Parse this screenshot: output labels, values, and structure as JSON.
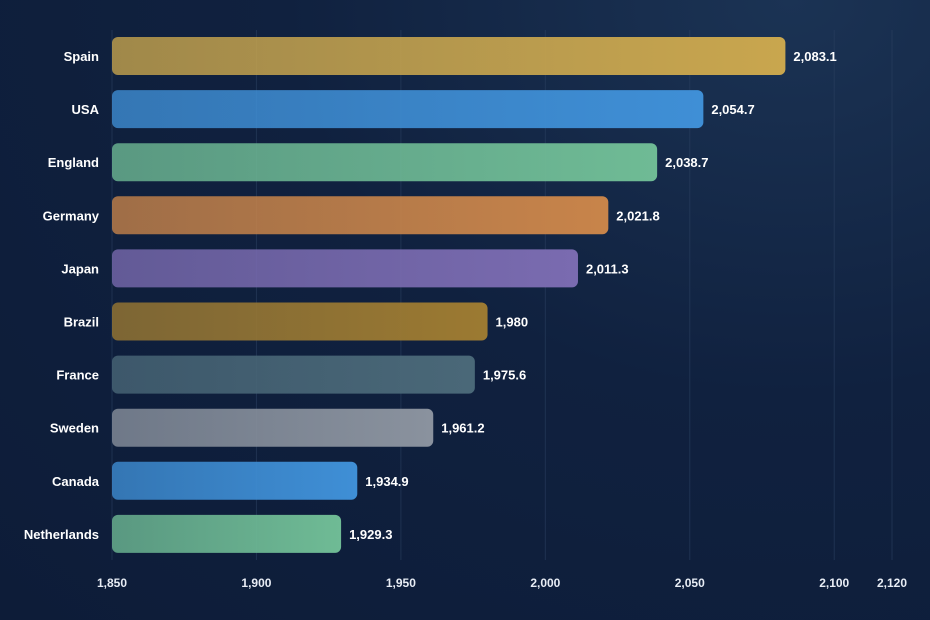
{
  "chart_data": {
    "type": "bar",
    "orientation": "horizontal",
    "categories": [
      "Spain",
      "USA",
      "England",
      "Germany",
      "Japan",
      "Brazil",
      "France",
      "Sweden",
      "Canada",
      "Netherlands"
    ],
    "values": [
      2083.1,
      2054.7,
      2038.7,
      2021.8,
      2011.3,
      1980,
      1975.6,
      1961.2,
      1934.9,
      1929.3
    ],
    "value_labels": [
      "2,083.1",
      "2,054.7",
      "2,038.7",
      "2,021.8",
      "2,011.3",
      "1,980",
      "1,975.6",
      "1,961.2",
      "1,934.9",
      "1,929.3"
    ],
    "colors": [
      "#c9a64e",
      "#3f8fd6",
      "#6fbb95",
      "#c8844a",
      "#7a6bb0",
      "#9c7a32",
      "#4a6878",
      "#8a929e",
      "#3f8fd6",
      "#6fbb95"
    ],
    "xlim": [
      1850,
      2120
    ],
    "xticks": [
      1850,
      1900,
      1950,
      2000,
      2050,
      2100,
      2120
    ],
    "xtick_labels": [
      "1,850",
      "1,900",
      "1,950",
      "2,000",
      "2,050",
      "2,100",
      "2,120"
    ],
    "grid": true,
    "title": "",
    "xlabel": "",
    "ylabel": ""
  }
}
